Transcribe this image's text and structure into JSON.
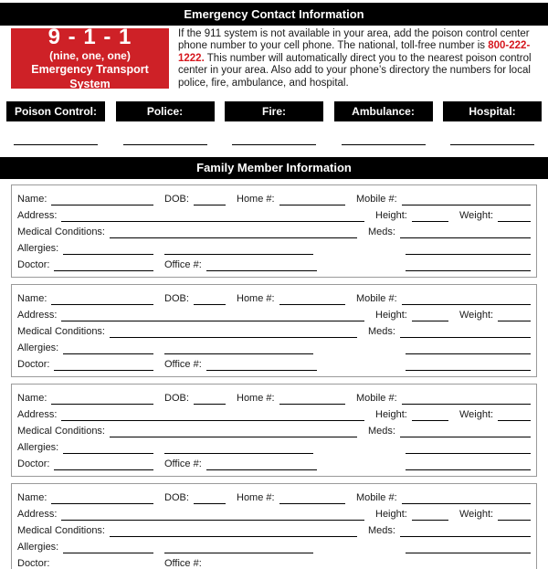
{
  "page": {
    "emergency_header": "Emergency Contact Information",
    "family_header": "Family Member Information"
  },
  "call_box": {
    "number": "9 - 1 - 1",
    "subtitle": "(nine, one, one)",
    "caption": "Emergency Transport System",
    "background_color": "#ce2127",
    "text_color": "#ffffff"
  },
  "intro": {
    "text_before": "If the 911 system is not available in your area, add the poison control center phone number to your cell phone. The national, toll-free number is ",
    "phone": "800-222-1222.",
    "text_after": " This number will automatically direct you to the nearest poison control center in your area. Also add to your phone’s directory the numbers for local police, fire, ambulance, and hospital.",
    "phone_color": "#d6181f"
  },
  "contacts": {
    "labels": [
      "Poison Control:",
      "Police:",
      "Fire:",
      "Ambulance:",
      "Hospital:"
    ],
    "box_background": "#000000",
    "box_text_color": "#ffffff"
  },
  "family": {
    "member_count": 4
  },
  "member_block": {
    "name_label": "Name:",
    "dob_label": "DOB:",
    "home_label": "Home #:",
    "mobile_label": "Mobile #:",
    "address_label": "Address:",
    "height_label": "Height:",
    "weight_label": "Weight:",
    "medical_label": "Medical Conditions:",
    "meds_label": "Meds:",
    "allergies_label": "Allergies:",
    "doctor_label": "Doctor:",
    "office_label": "Office #:"
  }
}
